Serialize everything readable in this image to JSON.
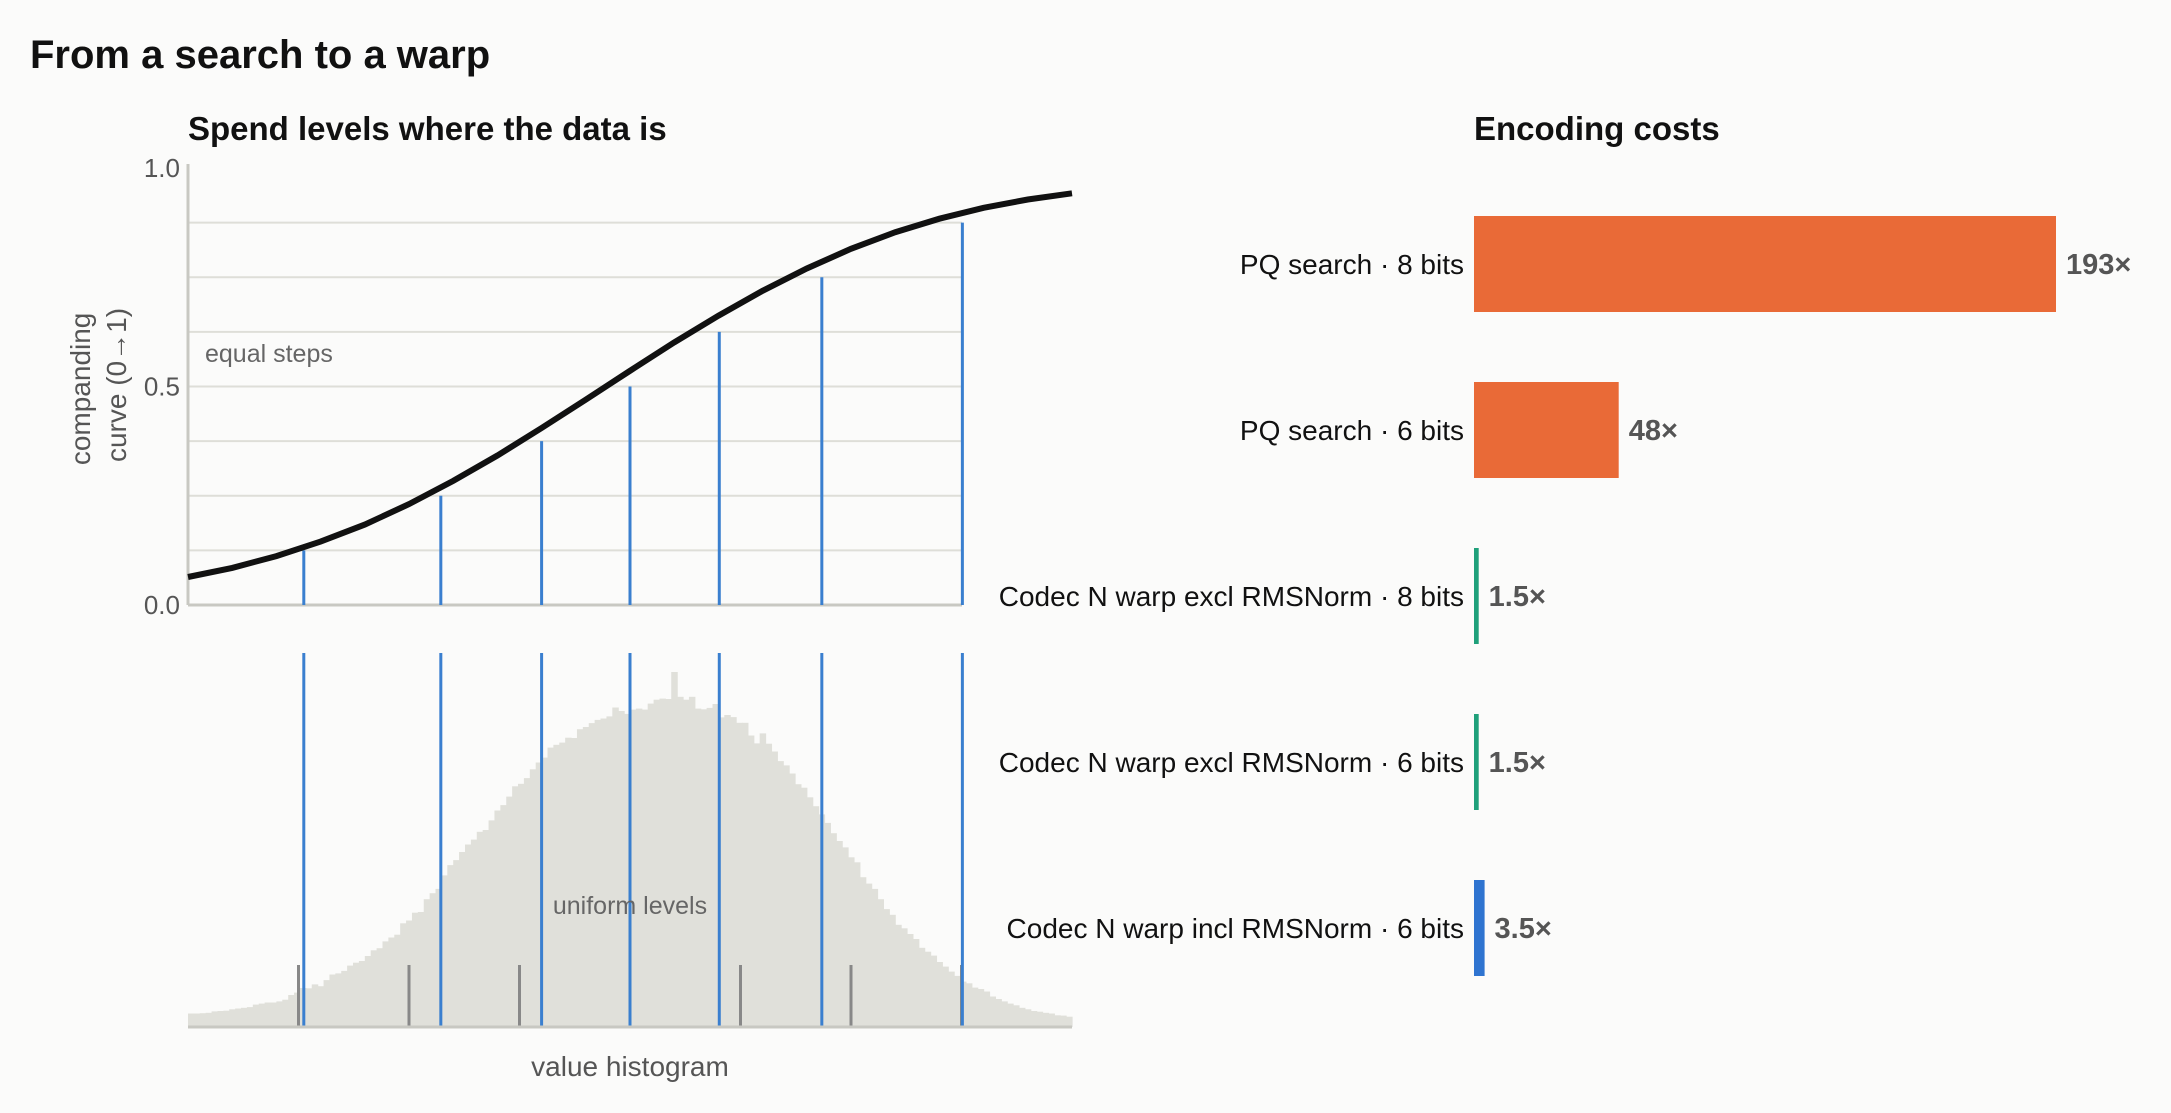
{
  "title": "From a search to a warp",
  "chart_data": [
    {
      "type": "line",
      "title": "Spend levels where the data is",
      "ylabel": "companding curve (0→1)",
      "xlabel": "",
      "ylim": [
        0,
        1
      ],
      "y_ticks": [
        "0.0",
        "0.5",
        "1.0"
      ],
      "grid": true,
      "annotation": "equal steps",
      "curve": {
        "x": [
          0.0,
          0.05,
          0.1,
          0.15,
          0.2,
          0.25,
          0.3,
          0.35,
          0.4,
          0.45,
          0.5,
          0.55,
          0.6,
          0.65,
          0.7,
          0.75,
          0.8,
          0.85,
          0.9,
          0.95,
          1.0
        ],
        "y": [
          0.064,
          0.085,
          0.112,
          0.145,
          0.184,
          0.231,
          0.284,
          0.342,
          0.405,
          0.47,
          0.536,
          0.601,
          0.662,
          0.719,
          0.77,
          0.815,
          0.853,
          0.884,
          0.909,
          0.928,
          0.942
        ]
      },
      "level_x": [
        0.131,
        0.286,
        0.4,
        0.5,
        0.601,
        0.717,
        0.876
      ],
      "level_y": [
        0.125,
        0.25,
        0.375,
        0.5,
        0.625,
        0.75,
        0.875
      ],
      "colors": {
        "curve": "#111111",
        "levels": "#3a7fcf",
        "grid": "#deded8"
      }
    },
    {
      "type": "bar",
      "title": "",
      "xlabel": "value histogram",
      "annotation": "uniform levels",
      "histogram": [
        0.038,
        0.038,
        0.039,
        0.04,
        0.044,
        0.045,
        0.046,
        0.05,
        0.052,
        0.054,
        0.056,
        0.063,
        0.066,
        0.069,
        0.069,
        0.072,
        0.077,
        0.09,
        0.097,
        0.11,
        0.109,
        0.12,
        0.115,
        0.132,
        0.148,
        0.151,
        0.158,
        0.173,
        0.181,
        0.186,
        0.2,
        0.216,
        0.222,
        0.241,
        0.252,
        0.26,
        0.292,
        0.3,
        0.322,
        0.324,
        0.36,
        0.377,
        0.389,
        0.427,
        0.456,
        0.47,
        0.493,
        0.514,
        0.528,
        0.55,
        0.555,
        0.582,
        0.61,
        0.625,
        0.649,
        0.678,
        0.685,
        0.701,
        0.726,
        0.745,
        0.759,
        0.787,
        0.795,
        0.801,
        0.815,
        0.814,
        0.839,
        0.845,
        0.856,
        0.865,
        0.869,
        0.875,
        0.9,
        0.89,
        0.882,
        0.894,
        0.897,
        0.894,
        0.911,
        0.922,
        0.925,
        0.924,
        1.0,
        0.93,
        0.922,
        0.93,
        0.897,
        0.895,
        0.899,
        0.91,
        0.872,
        0.879,
        0.873,
        0.857,
        0.857,
        0.821,
        0.799,
        0.827,
        0.798,
        0.776,
        0.749,
        0.737,
        0.714,
        0.684,
        0.674,
        0.647,
        0.622,
        0.599,
        0.575,
        0.546,
        0.524,
        0.506,
        0.478,
        0.464,
        0.422,
        0.404,
        0.389,
        0.36,
        0.332,
        0.316,
        0.288,
        0.278,
        0.262,
        0.248,
        0.223,
        0.212,
        0.201,
        0.183,
        0.17,
        0.156,
        0.144,
        0.128,
        0.123,
        0.111,
        0.107,
        0.1,
        0.086,
        0.079,
        0.072,
        0.066,
        0.061,
        0.054,
        0.05,
        0.045,
        0.043,
        0.04,
        0.038,
        0.033,
        0.032,
        0.029
      ],
      "companded_levels_x": [
        0.131,
        0.286,
        0.4,
        0.5,
        0.601,
        0.717,
        0.876
      ],
      "uniform_levels_x": [
        0.125,
        0.25,
        0.375,
        0.5,
        0.625,
        0.75,
        0.875
      ],
      "colors": {
        "bars": "#e0e0da",
        "companded": "#3a7fcf",
        "uniform": "#888888"
      }
    },
    {
      "type": "bar",
      "orientation": "horizontal",
      "title": "Encoding costs",
      "categories": [
        "PQ search · 8 bits",
        "PQ search · 6 bits",
        "Codec N warp excl RMSNorm · 8 bits",
        "Codec N warp excl RMSNorm · 6 bits",
        "Codec N warp incl RMSNorm · 6 bits"
      ],
      "values": [
        193,
        48,
        1.5,
        1.5,
        3.5
      ],
      "value_labels": [
        "193×",
        "48×",
        "1.5×",
        "1.5×",
        "3.5×"
      ],
      "colors": [
        "#e96a37",
        "#e96a37",
        "#1fa07a",
        "#1fa07a",
        "#2f74d0"
      ]
    }
  ]
}
